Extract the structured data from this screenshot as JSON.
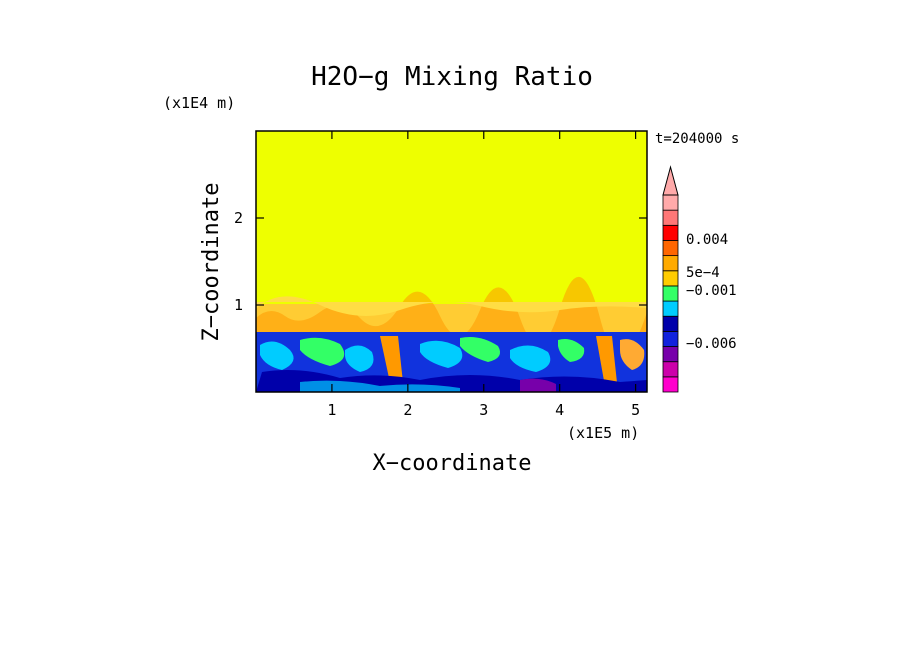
{
  "chart_data": {
    "type": "heatmap",
    "title": "H2O−g Mixing Ratio",
    "xlabel": "X−coordinate",
    "ylabel": "Z−coordinate",
    "x_scale_label": "(x1E5 m)",
    "y_scale_label": "(x1E4 m)",
    "time_label": "t=204000 s",
    "xlim": [
      0,
      5.15
    ],
    "ylim": [
      0,
      3.0
    ],
    "x_ticks": [
      1,
      2,
      3,
      4,
      5
    ],
    "y_ticks": [
      1,
      2
    ],
    "grid": false,
    "colorbar": {
      "colors": [
        "#ff00cc",
        "#cc00aa",
        "#7700aa",
        "#1122dd",
        "#0000aa",
        "#00ccff",
        "#33ff66",
        "#ffcc00",
        "#ffaa00",
        "#ff6600",
        "#ff0000",
        "#ff7777",
        "#ffaaaa"
      ],
      "labels": [
        "0.004",
        "5e−4",
        "−0.001",
        "−0.006"
      ],
      "extend": "max"
    },
    "regions": [
      {
        "z_range": [
          1.02,
          3.0
        ],
        "value_color": "#eeff00"
      },
      {
        "z_range": [
          0.7,
          1.02
        ],
        "value_color": "#ffcc33"
      },
      {
        "z_range": [
          0.0,
          0.7
        ],
        "value_color": "#1133dd"
      }
    ]
  }
}
